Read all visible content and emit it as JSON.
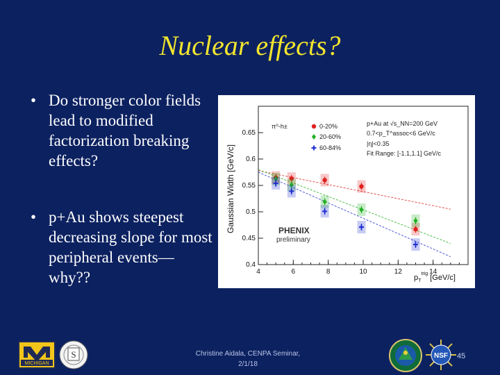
{
  "slide": {
    "title": "Nuclear effects?",
    "bullets": [
      "Do stronger color fields lead to modified factorization breaking effects?",
      "p+Au shows steepest decreasing slope for most peripheral events—why??"
    ],
    "footer_line1": "Christine Aidala, CENPA Seminar,",
    "footer_line2": "2/1/18",
    "page_number": "45"
  },
  "logos": {
    "umich_text": "MICHIGAN",
    "seal_letter": "S",
    "nsf_text": "NSF"
  },
  "colors": {
    "background": "#0c2160",
    "title": "#f2e52e",
    "central": "#e02020",
    "mid": "#20b020",
    "peripheral": "#2030d0"
  },
  "chart_data": {
    "type": "scatter",
    "title": "",
    "xlabel": "p_T^trig [GeV/c]",
    "ylabel": "Gaussian Width [GeV/c]",
    "xlim": [
      4,
      16
    ],
    "ylim": [
      0.4,
      0.7
    ],
    "xticks": [
      4,
      6,
      8,
      10,
      12,
      14
    ],
    "yticks": [
      0.4,
      0.45,
      0.5,
      0.55,
      0.6,
      0.65
    ],
    "process_label": "π⁰-h±",
    "legend": [
      "0-20%",
      "20-60%",
      "60-84%"
    ],
    "conditions": [
      "p+Au at √s_NN=200 GeV",
      "0.7<p_T^assoc<6 GeV/c",
      "|η|<0.35",
      "Fit Range: [-1.1,1.1] GeV/c"
    ],
    "watermark": "PHENIX",
    "watermark_sub": "preliminary",
    "series": [
      {
        "name": "0-20%",
        "color": "#e02020",
        "x": [
          5.0,
          5.9,
          7.8,
          9.9,
          13.0
        ],
        "y": [
          0.565,
          0.563,
          0.56,
          0.548,
          0.467
        ],
        "fit": [
          [
            4.0,
            0.578
          ],
          [
            15.0,
            0.505
          ]
        ]
      },
      {
        "name": "20-60%",
        "color": "#20b020",
        "x": [
          5.0,
          5.9,
          7.8,
          9.9,
          13.0
        ],
        "y": [
          0.562,
          0.551,
          0.519,
          0.504,
          0.483
        ],
        "fit": [
          [
            4.0,
            0.58
          ],
          [
            15.0,
            0.44
          ]
        ]
      },
      {
        "name": "60-84%",
        "color": "#2030d0",
        "x": [
          5.0,
          5.9,
          7.8,
          9.9,
          13.0
        ],
        "y": [
          0.554,
          0.539,
          0.501,
          0.471,
          0.438
        ],
        "fit": [
          [
            4.0,
            0.575
          ],
          [
            15.0,
            0.415
          ]
        ]
      }
    ]
  }
}
